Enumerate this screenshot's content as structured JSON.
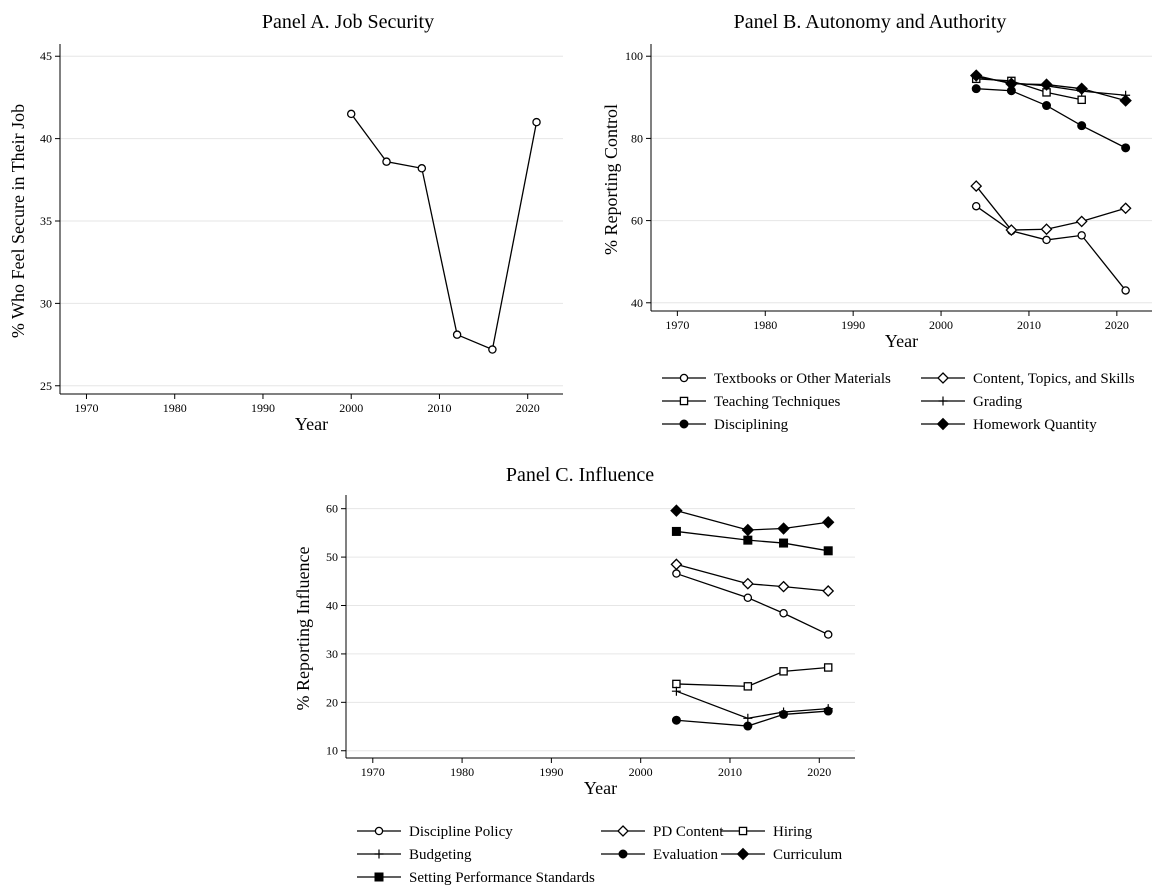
{
  "chart_data": [
    {
      "id": "panelA",
      "type": "line",
      "title": "Panel A. Job Security",
      "xlabel": "Year",
      "ylabel": "% Who Feel Secure in Their Job",
      "xlim": [
        1967,
        2024
      ],
      "ylim": [
        24.5,
        45.5
      ],
      "xticks": [
        1970,
        1980,
        1990,
        2000,
        2010,
        2020
      ],
      "yticks": [
        25,
        30,
        35,
        40,
        45
      ],
      "grid": true,
      "series": [
        {
          "marker": "circle-open",
          "x": [
            2000,
            2004,
            2008,
            2012,
            2016,
            2021
          ],
          "y": [
            41.5,
            38.6,
            38.2,
            28.1,
            27.2,
            41.0
          ]
        }
      ]
    },
    {
      "id": "panelB",
      "type": "line",
      "title": "Panel B. Autonomy and Authority",
      "xlabel": "Year",
      "ylabel": "% Reporting Control",
      "xlim": [
        1967,
        2024
      ],
      "ylim": [
        38,
        102
      ],
      "xticks": [
        1970,
        1980,
        1990,
        2000,
        2010,
        2020
      ],
      "yticks": [
        40,
        60,
        80,
        100
      ],
      "grid": true,
      "legend_position": "bottom",
      "series": [
        {
          "name": "Textbooks or Other Materials",
          "marker": "circle-open",
          "x": [
            2004,
            2008,
            2012,
            2016,
            2021
          ],
          "y": [
            63.5,
            57.5,
            55.3,
            56.4,
            43.0
          ]
        },
        {
          "name": "Content, Topics, and Skills",
          "marker": "diamond-open",
          "x": [
            2004,
            2008,
            2012,
            2016,
            2021
          ],
          "y": [
            68.4,
            57.7,
            57.9,
            59.8,
            63.0
          ]
        },
        {
          "name": "Teaching Techniques",
          "marker": "square-open",
          "x": [
            2004,
            2008,
            2012,
            2016
          ],
          "y": [
            94.5,
            94.0,
            91.2,
            89.4
          ]
        },
        {
          "name": "Grading",
          "marker": "plus",
          "x": [
            2004,
            2008,
            2012,
            2016,
            2021
          ],
          "y": [
            95.0,
            93.5,
            92.8,
            91.5,
            90.5
          ]
        },
        {
          "name": "Disciplining",
          "marker": "circle-filled",
          "x": [
            2004,
            2008,
            2012,
            2016,
            2021
          ],
          "y": [
            92.1,
            91.6,
            88.0,
            83.1,
            77.7
          ]
        },
        {
          "name": "Homework Quantity",
          "marker": "diamond-filled",
          "x": [
            2004,
            2008,
            2012,
            2016,
            2021
          ],
          "y": [
            95.3,
            93.3,
            93.1,
            92.1,
            89.2
          ]
        }
      ]
    },
    {
      "id": "panelC",
      "type": "line",
      "title": "Panel C. Influence",
      "xlabel": "Year",
      "ylabel": "% Reporting Influence",
      "xlim": [
        1967,
        2024
      ],
      "ylim": [
        8.5,
        62
      ],
      "xticks": [
        1970,
        1980,
        1990,
        2000,
        2010,
        2020
      ],
      "yticks": [
        10,
        20,
        30,
        40,
        50,
        60
      ],
      "grid": true,
      "legend_position": "bottom",
      "series": [
        {
          "name": "Discipline Policy",
          "marker": "circle-open",
          "x": [
            2004,
            2012,
            2016,
            2021
          ],
          "y": [
            46.6,
            41.6,
            38.4,
            34.0
          ]
        },
        {
          "name": "PD Content",
          "marker": "diamond-open",
          "x": [
            2004,
            2012,
            2016,
            2021
          ],
          "y": [
            48.5,
            44.5,
            43.9,
            43.0
          ]
        },
        {
          "name": "Hiring",
          "marker": "square-open",
          "x": [
            2004,
            2012,
            2016,
            2021
          ],
          "y": [
            23.8,
            23.3,
            26.4,
            27.2
          ]
        },
        {
          "name": "Budgeting",
          "marker": "plus",
          "x": [
            2004,
            2012,
            2016,
            2021
          ],
          "y": [
            22.3,
            16.7,
            18.0,
            18.7
          ]
        },
        {
          "name": "Evaluation",
          "marker": "circle-filled",
          "x": [
            2004,
            2012,
            2016,
            2021
          ],
          "y": [
            16.3,
            15.1,
            17.5,
            18.2
          ]
        },
        {
          "name": "Curriculum",
          "marker": "diamond-filled",
          "x": [
            2004,
            2012,
            2016,
            2021
          ],
          "y": [
            59.6,
            55.6,
            55.9,
            57.2
          ]
        },
        {
          "name": "Setting Performance Standards",
          "marker": "square-filled",
          "x": [
            2004,
            2012,
            2016,
            2021
          ],
          "y": [
            55.3,
            53.5,
            52.9,
            51.3
          ]
        }
      ]
    }
  ]
}
